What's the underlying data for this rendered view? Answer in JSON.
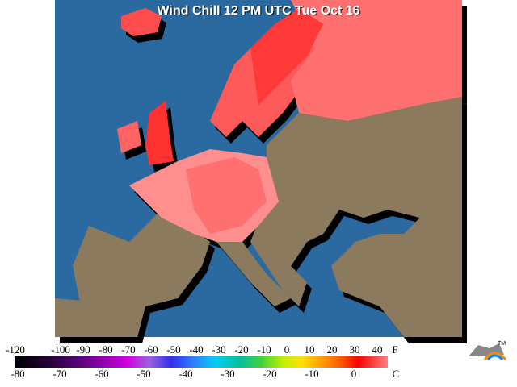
{
  "header": {
    "title": "Wind Chill 12 PM UTC Tue Oct 16"
  },
  "legend": {
    "fahrenheit": {
      "labels": [
        -120,
        -100,
        -90,
        -80,
        -70,
        -60,
        -50,
        -40,
        -30,
        -20,
        -10,
        0,
        10,
        20,
        30,
        40
      ],
      "unit": "F"
    },
    "celsius": {
      "labels": [
        -80,
        -70,
        -60,
        -50,
        -40,
        -30,
        -20,
        -10,
        0
      ],
      "unit": "C"
    }
  },
  "logo": {
    "mark": "TM"
  }
}
